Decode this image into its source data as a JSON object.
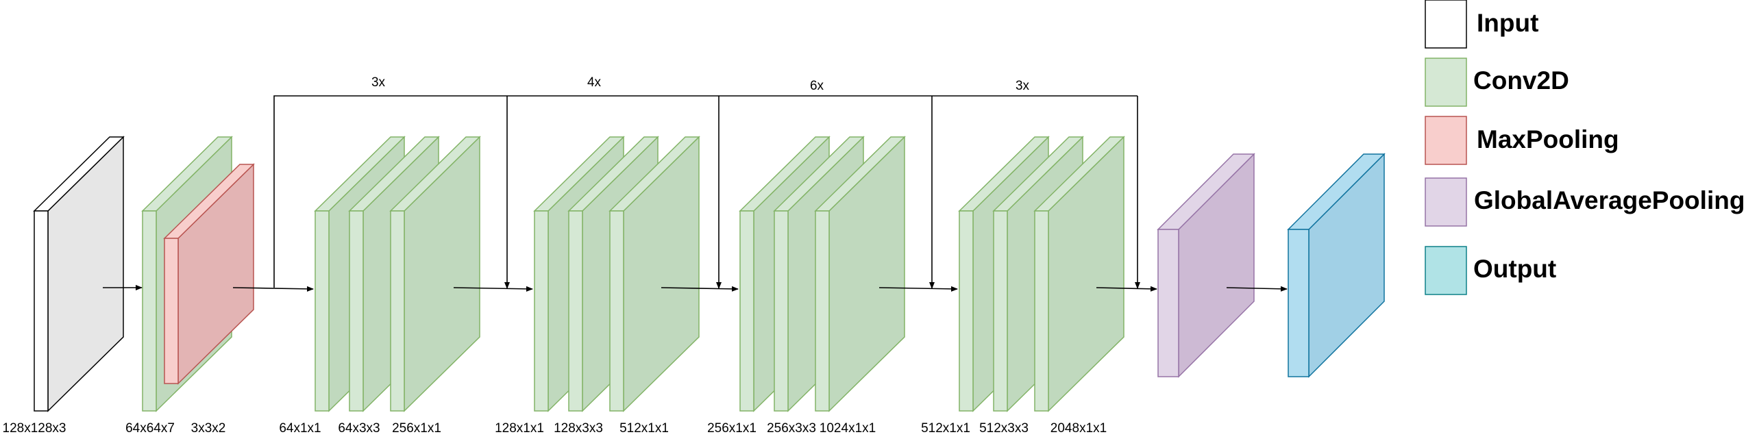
{
  "colors": {
    "input": {
      "fill": "#ffffff",
      "side": "#e6e6e6",
      "stroke": "#000000"
    },
    "conv2d": {
      "fill": "#d5e8d4",
      "side": "#c0d9be",
      "stroke": "#82b366"
    },
    "maxpooling": {
      "fill": "#f8cecc",
      "side": "#e3b4b4",
      "stroke": "#b85450"
    },
    "gap": {
      "fill": "#e1d5e7",
      "side": "#cdbad4",
      "stroke": "#9673a6"
    },
    "output": {
      "fill": "#b1ddf0",
      "side": "#a1d0e6",
      "stroke": "#10739e"
    },
    "legend_output": {
      "fill": "#b0e3e6",
      "stroke": "#0e8088"
    }
  },
  "layers": {
    "input": {
      "label": "128x128x3"
    },
    "stem_conv": {
      "label": "64x64x7"
    },
    "stem_pool": {
      "label": "3x3x2"
    },
    "stage1": {
      "repeat": "3x",
      "labels": [
        "64x1x1",
        "64x3x3",
        "256x1x1"
      ]
    },
    "stage2": {
      "repeat": "4x",
      "labels": [
        "128x1x1",
        "128x3x3",
        "512x1x1"
      ]
    },
    "stage3": {
      "repeat": "6x",
      "labels": [
        "256x1x1",
        "256x3x3",
        "1024x1x1"
      ]
    },
    "stage4": {
      "repeat": "3x",
      "labels": [
        "512x1x1",
        "512x3x3",
        "2048x1x1"
      ]
    }
  },
  "legend": {
    "items": [
      {
        "key": "input",
        "label": "Input"
      },
      {
        "key": "conv2d",
        "label": "Conv2D"
      },
      {
        "key": "maxpooling",
        "label": "MaxPooling"
      },
      {
        "key": "gap",
        "label": "GlobalAveragePooling"
      },
      {
        "key": "legend_output",
        "label": "Output"
      }
    ]
  }
}
